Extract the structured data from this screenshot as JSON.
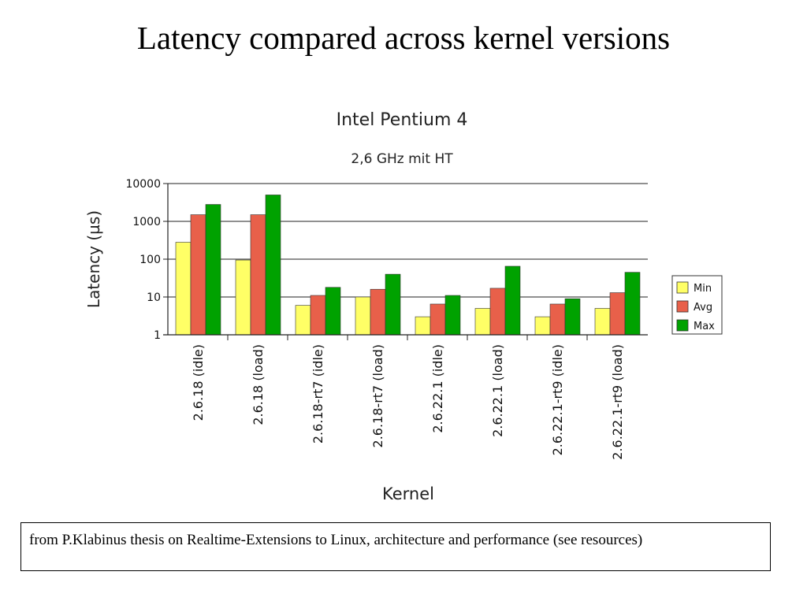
{
  "slide": {
    "title": "Latency compared across kernel versions",
    "caption": "from P.Klabinus thesis on Realtime-Extensions to Linux, architecture and performance (see resources)"
  },
  "chart_data": {
    "type": "bar",
    "title": "Intel Pentium 4",
    "subtitle": "2,6 GHz mit HT",
    "xlabel": "Kernel",
    "ylabel": "Latency (µs)",
    "yscale": "log",
    "ylim": [
      1,
      10000
    ],
    "yticks": [
      "1",
      "10",
      "100",
      "1000",
      "10000"
    ],
    "grid": "horizontal",
    "legend_position": "right",
    "categories": [
      "2.6.18 (idle)",
      "2.6.18 (load)",
      "2.6.18-rt7 (idle)",
      "2.6.18-rt7 (load)",
      "2.6.22.1 (idle)",
      "2.6.22.1 (load)",
      "2.6.22.1-rt9 (idle)",
      "2.6.22.1-rt9 (load)"
    ],
    "series": [
      {
        "name": "Min",
        "color": "#ffff66",
        "values": [
          280,
          95,
          6,
          10,
          3,
          5,
          3,
          5
        ]
      },
      {
        "name": "Avg",
        "color": "#e8604a",
        "values": [
          1500,
          1500,
          11,
          16,
          6.5,
          17,
          6.5,
          13
        ]
      },
      {
        "name": "Max",
        "color": "#00a200",
        "values": [
          2800,
          5000,
          18,
          40,
          11,
          65,
          9,
          45
        ]
      }
    ]
  }
}
